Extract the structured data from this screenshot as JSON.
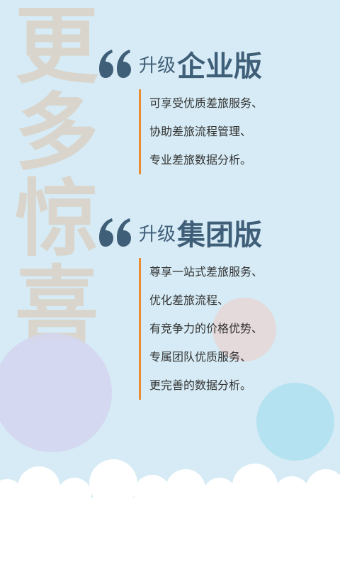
{
  "background_text": [
    "更",
    "多",
    "惊",
    "喜"
  ],
  "sections": [
    {
      "prefix": "升级",
      "title": "企业版",
      "lines": [
        "可享受优质差旅服务、",
        "协助差旅流程管理、",
        "专业差旅数据分析。"
      ]
    },
    {
      "prefix": "升级",
      "title": "集团版",
      "lines": [
        "尊享一站式差旅服务、",
        "优化差旅流程、",
        "有竞争力的价格优势、",
        "专属团队优质服务、",
        "更完善的数据分析。"
      ]
    }
  ],
  "icons": {
    "quote": "quote-icon"
  },
  "colors": {
    "background": "#d6ebf5",
    "heading": "#3f5e78",
    "accent_bar": "#e98c32",
    "body_text": "#333333"
  }
}
